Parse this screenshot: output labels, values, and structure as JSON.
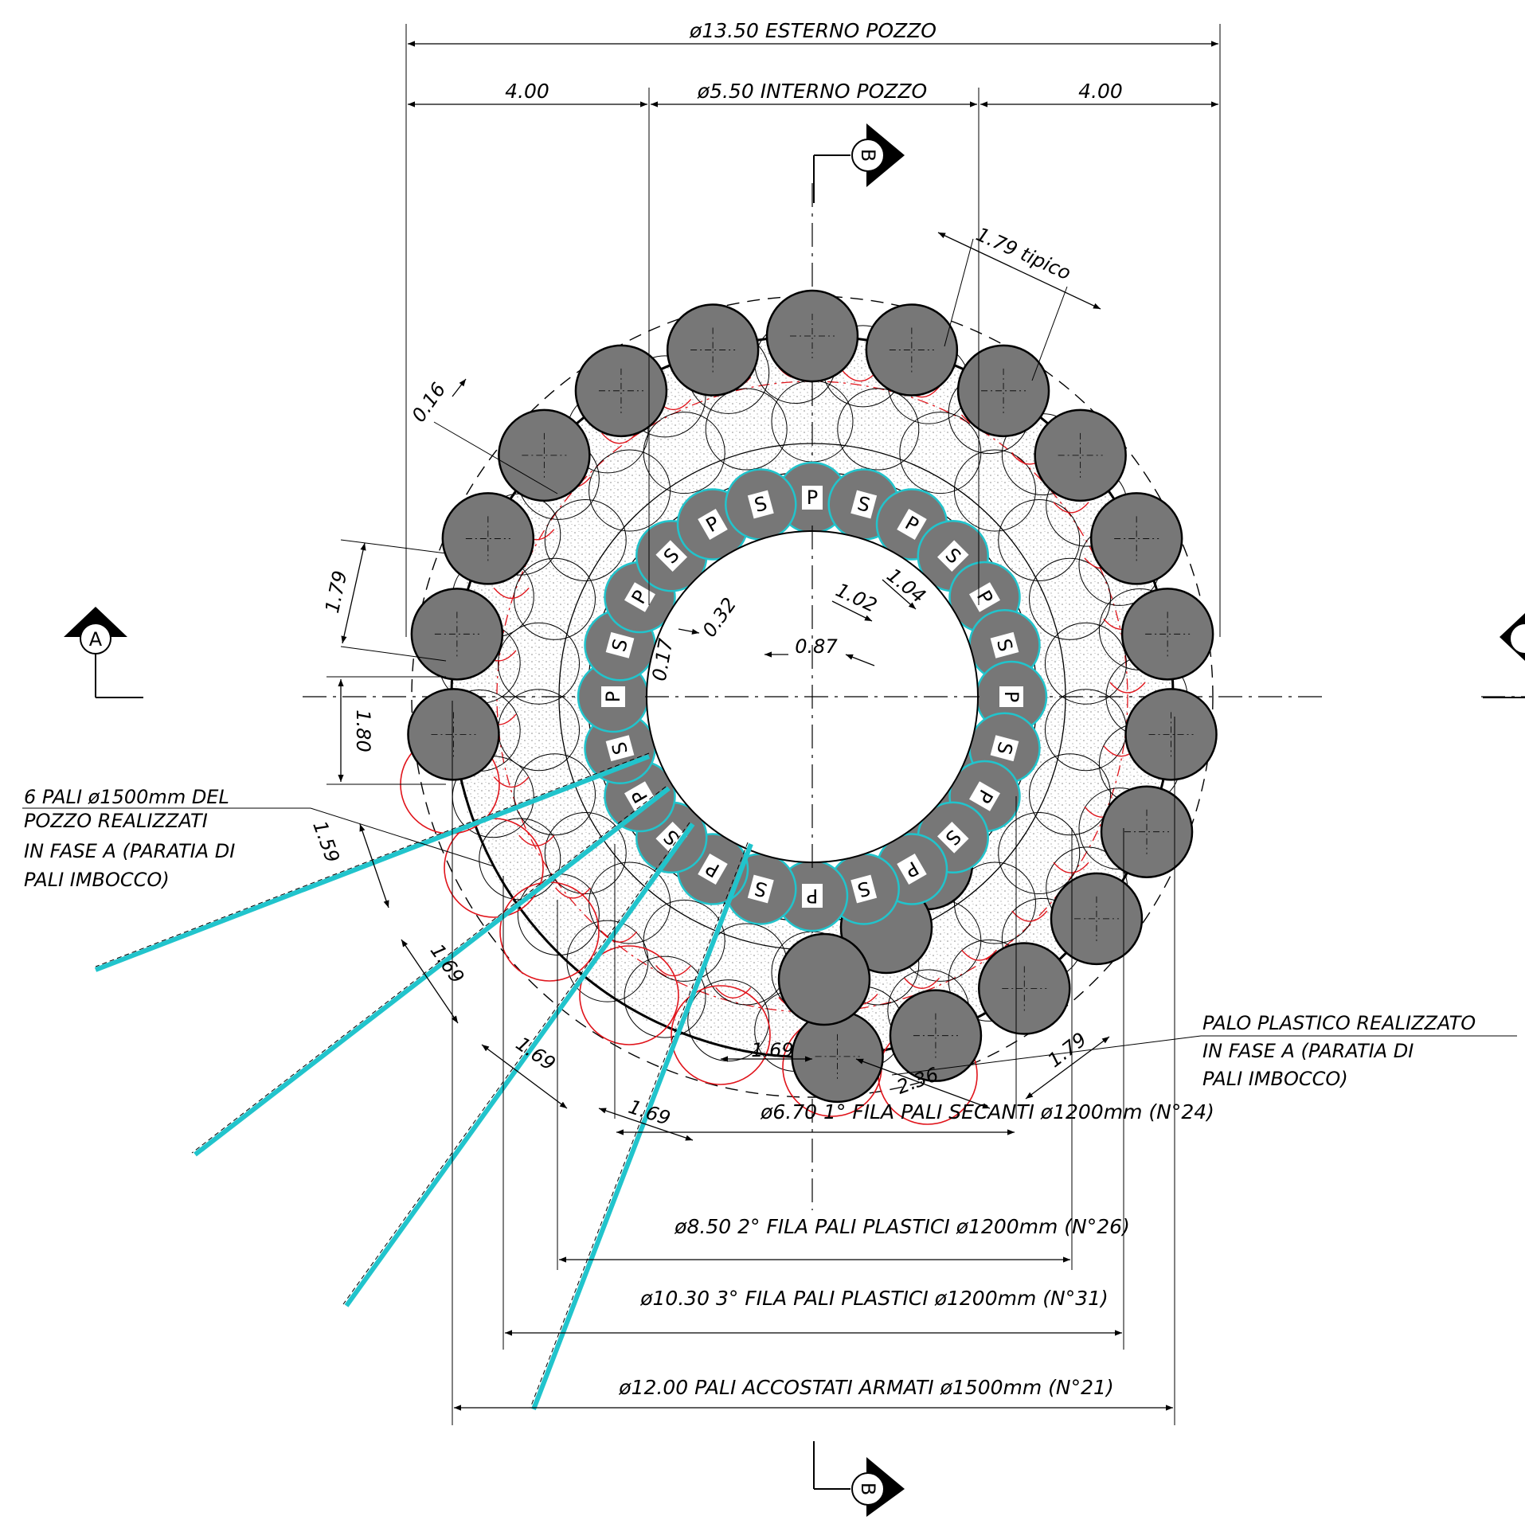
{
  "labels": {
    "d_outer": "ø13.50 ESTERNO POZZO",
    "d_inner": "ø5.50 INTERNO POZZO",
    "d_left": "4.00",
    "d_right": "4.00",
    "row1": "ø6.70 1° FILA PALI SECANTI ø1200mm (N°24)",
    "row2": "ø8.50 2° FILA PALI PLASTICI ø1200mm (N°26)",
    "row3": "ø10.30 3° FILA PALI PLASTICI ø1200mm (N°31)",
    "row4": "ø12.00 PALI ACCOSTATI ARMATI ø1500mm (N°21)",
    "note_left_1": "6 PALI ø1500mm DEL",
    "note_left_2": "POZZO REALIZZATI",
    "note_left_3": "IN FASE A (PARATIA DI",
    "note_left_4": "PALI IMBOCCO)",
    "note_right_1": "PALO PLASTICO REALIZZATO",
    "note_right_2": "IN FASE A (PARATIA DI",
    "note_right_3": "PALI IMBOCCO)",
    "tipico": "1.79 tipico",
    "d016": "0.16",
    "d179_left": "1.79",
    "d180": "1.80",
    "d159": "1.59",
    "d169_a": "1.69",
    "d169_b": "1.69",
    "d169_c": "1.69",
    "d169_d": "1.69",
    "d236": "2.36",
    "d179_br": "1.79",
    "d017": "0.17",
    "d032": "0.32",
    "d102": "1.02",
    "d104": "1.04",
    "d087": "0.87",
    "sec_A": "A",
    "sec_B_top": "B",
    "sec_B_bot": "B",
    "pile_P": "P",
    "pile_S": "S"
  },
  "colors": {
    "pile_fill": "#777777",
    "cyan": "#21c4cc",
    "red": "#e0141b",
    "green": "#3a9a2a"
  }
}
